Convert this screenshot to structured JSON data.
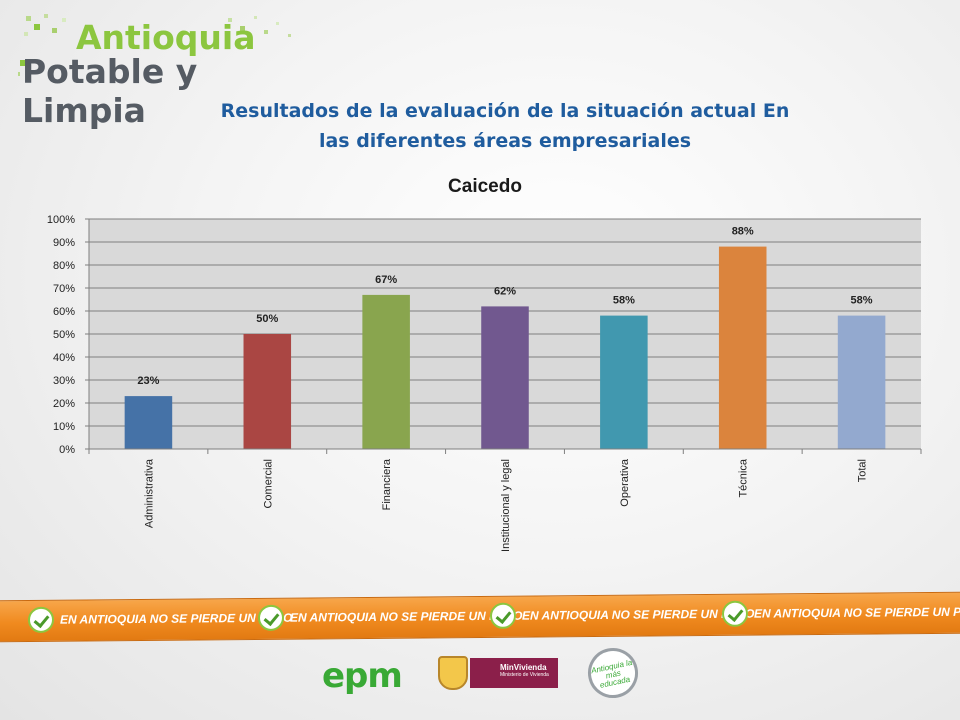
{
  "header": {
    "logo_line1": "Antioquia",
    "logo_line2": "Potable y Limpia",
    "slide_title_line1": "Resultados de la evaluación de la situación actual En",
    "slide_title_line2": "las diferentes áreas empresariales"
  },
  "colors": {
    "title_blue": "#1f5c9e",
    "logo_green": "#8cc63f",
    "banner_orange": "#f08a1f"
  },
  "chart_data": {
    "type": "bar",
    "title": "Caicedo",
    "xlabel": "",
    "ylabel": "",
    "ylim": [
      0,
      100
    ],
    "yticks": [
      "0%",
      "10%",
      "20%",
      "30%",
      "40%",
      "50%",
      "60%",
      "70%",
      "80%",
      "90%",
      "100%"
    ],
    "grid": true,
    "categories": [
      "Administrativa",
      "Comercial",
      "Financiera",
      "Institucional y legal",
      "Operativa",
      "Técnica",
      "Total"
    ],
    "values": [
      23,
      50,
      67,
      62,
      58,
      88,
      58
    ],
    "value_labels": [
      "23%",
      "50%",
      "67%",
      "62%",
      "58%",
      "88%",
      "58%"
    ],
    "bar_colors": [
      "#4572a7",
      "#aa4643",
      "#89a54e",
      "#71588f",
      "#4198af",
      "#db843d",
      "#93a9cf"
    ]
  },
  "banner": {
    "text": "EN ANTIOQUIA NO SE PIERDE UN PESO",
    "repeat_count": 4
  },
  "footer": {
    "epm_label": "epm",
    "minvivienda_label": "MinVivienda",
    "minvivienda_sub": "Ministerio de Vivienda",
    "educada_label": "Antioquia la más educada"
  }
}
